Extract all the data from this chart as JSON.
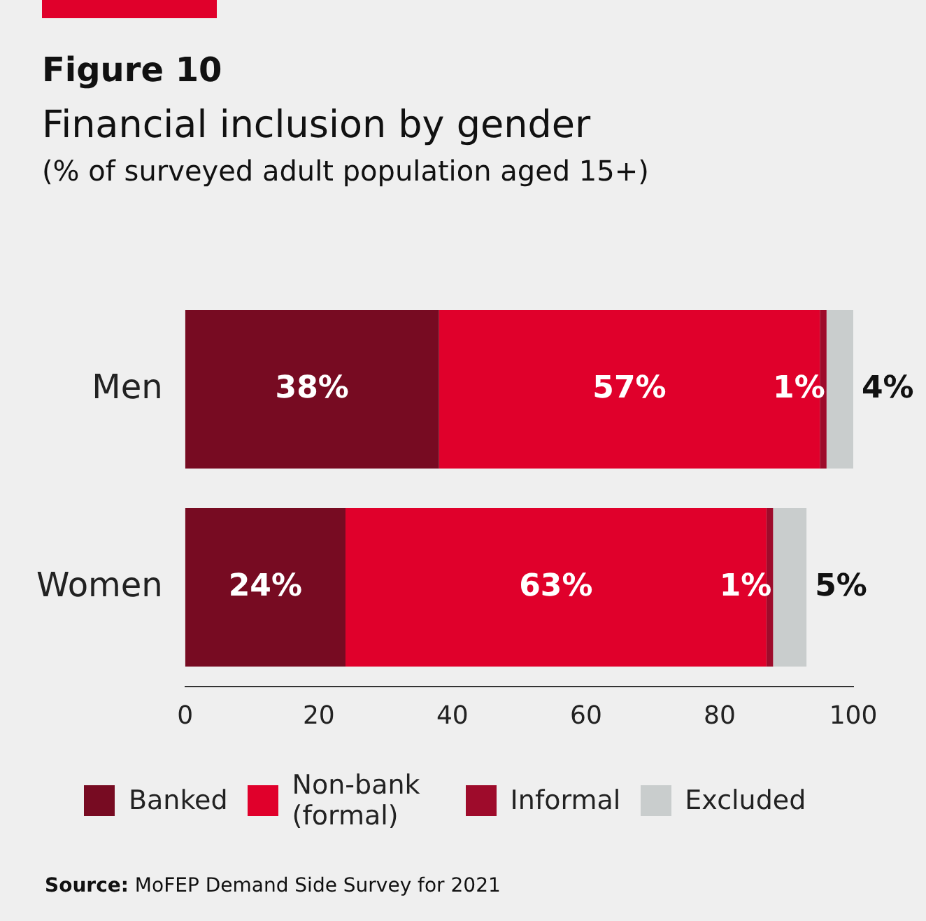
{
  "chart_data": {
    "type": "bar",
    "orientation": "horizontal",
    "stacked": true,
    "title": "Figure 10",
    "subtitle": "Financial inclusion by gender\n(% of surveyed adult population aged 15+)",
    "categories": [
      "Men",
      "Women"
    ],
    "series": [
      {
        "name": "Banked",
        "color": "#770b22",
        "values": [
          38,
          24
        ],
        "value_labels": [
          "38%",
          "24%"
        ]
      },
      {
        "name": "Non-bank (formal)",
        "color": "#e0002b",
        "values": [
          57,
          63
        ],
        "value_labels": [
          "57%",
          "63%"
        ]
      },
      {
        "name": "Informal",
        "color": "#9e0b2b",
        "values": [
          1,
          1
        ],
        "value_labels": [
          "1%",
          "1%"
        ]
      },
      {
        "name": "Excluded",
        "color": "#c9cdcd",
        "values": [
          4,
          5
        ],
        "value_labels": [
          "4%",
          "5%"
        ]
      }
    ],
    "xlim": [
      0,
      100
    ],
    "xticks": [
      0,
      20,
      40,
      60,
      80,
      100
    ],
    "grid": false,
    "legend": "bottom",
    "annotations": [
      "Source: MoFEP Demand Side Survey for 2021"
    ]
  }
}
